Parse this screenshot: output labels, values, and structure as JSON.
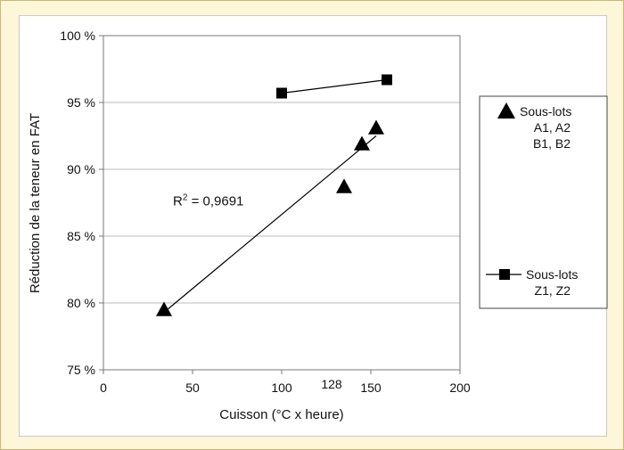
{
  "chart_data": {
    "type": "scatter",
    "title": "",
    "xlabel": "Cuisson (°C x heure)",
    "ylabel": "Réduction de la teneur en FAT",
    "xlim": [
      0,
      200
    ],
    "ylim": [
      75,
      100
    ],
    "x_ticks": [
      "0",
      "50",
      "100",
      "150",
      "200"
    ],
    "x_ticks_values": [
      0,
      50,
      100,
      150,
      200
    ],
    "x_annotation": {
      "label": "128",
      "value": 128
    },
    "y_ticks": [
      "75 %",
      "80 %",
      "85 %",
      "90 %",
      "95 %",
      "100 %"
    ],
    "y_ticks_values": [
      75,
      80,
      85,
      90,
      95,
      100
    ],
    "grid": "horizontal",
    "legend_position": "right",
    "series": [
      {
        "name_lines": [
          "Sous-lots",
          "A1, A2",
          "B1, B2"
        ],
        "marker": "triangle",
        "points": [
          {
            "x": 34,
            "y": 79.5
          },
          {
            "x": 135,
            "y": 88.7
          },
          {
            "x": 145,
            "y": 91.9
          },
          {
            "x": 153,
            "y": 93.1
          }
        ],
        "trendline": {
          "x0": 34,
          "y0": 79.3,
          "x1": 153,
          "y1": 92.5
        },
        "r2_prefix": "R",
        "r2_sup": "2",
        "r2_value": " = 0,9691",
        "r2_anchor": {
          "x": 39,
          "y": 87.3
        }
      },
      {
        "name_lines": [
          "Sous-lots",
          "Z1, Z2"
        ],
        "marker": "square",
        "connected": true,
        "points": [
          {
            "x": 100,
            "y": 95.7
          },
          {
            "x": 159,
            "y": 96.7
          }
        ]
      }
    ],
    "colors": {
      "marker": "#000000",
      "grid": "#bbbbbb",
      "frame": "#c9b87a",
      "background": "#fdf6d8"
    }
  }
}
